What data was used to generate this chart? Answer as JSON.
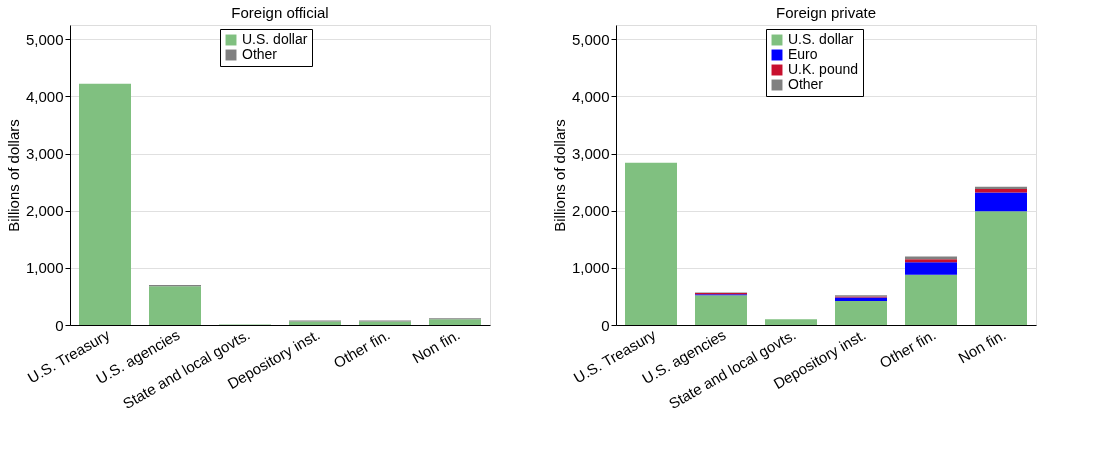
{
  "chart_data": [
    {
      "type": "bar",
      "title": "Foreign official",
      "ylabel": "Billions of dollars",
      "stacked": true,
      "legend": "top",
      "grid": "y",
      "categories": [
        "U.S. Treasury",
        "U.S. agencies",
        "State and local govts.",
        "Depository inst.",
        "Other fin.",
        "Non fin."
      ],
      "ylim": [
        0,
        5250
      ],
      "yticks": [
        {
          "value": 0,
          "label": "0"
        },
        {
          "value": 1000,
          "label": "1,000"
        },
        {
          "value": 2000,
          "label": "2,000"
        },
        {
          "value": 3000,
          "label": "3,000"
        },
        {
          "value": 4000,
          "label": "4,000"
        },
        {
          "value": 5000,
          "label": "5,000"
        }
      ],
      "series": [
        {
          "name": "U.S. dollar",
          "color": "#80c080",
          "values": [
            4220,
            680,
            10,
            60,
            60,
            100
          ]
        },
        {
          "name": "Other",
          "color": "#808080",
          "values": [
            0,
            20,
            0,
            20,
            20,
            20
          ]
        }
      ]
    },
    {
      "type": "bar",
      "title": "Foreign private",
      "ylabel": "Billions of dollars",
      "stacked": true,
      "legend": "top",
      "grid": "y",
      "categories": [
        "U.S. Treasury",
        "U.S. agencies",
        "State and local govts.",
        "Depository inst.",
        "Other fin.",
        "Non fin."
      ],
      "ylim": [
        0,
        5250
      ],
      "yticks": [
        {
          "value": 0,
          "label": "0"
        },
        {
          "value": 1000,
          "label": "1,000"
        },
        {
          "value": 2000,
          "label": "2,000"
        },
        {
          "value": 3000,
          "label": "3,000"
        },
        {
          "value": 4000,
          "label": "4,000"
        },
        {
          "value": 5000,
          "label": "5,000"
        }
      ],
      "series": [
        {
          "name": "U.S. dollar",
          "color": "#80c080",
          "values": [
            2840,
            520,
            100,
            420,
            880,
            1990
          ]
        },
        {
          "name": "Euro",
          "color": "#0000ff",
          "values": [
            0,
            20,
            0,
            60,
            220,
            330
          ]
        },
        {
          "name": "U.K. pound",
          "color": "#c8102e",
          "values": [
            0,
            20,
            0,
            20,
            50,
            60
          ]
        },
        {
          "name": "Other",
          "color": "#808080",
          "values": [
            0,
            10,
            0,
            20,
            50,
            40
          ]
        }
      ]
    }
  ]
}
